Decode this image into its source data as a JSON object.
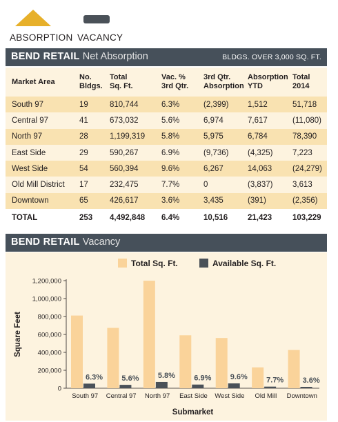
{
  "legend_top": {
    "absorption_label": "ABSORPTION",
    "vacancy_label": "VACANCY",
    "absorption_color": "#e7b02a",
    "vacancy_color": "#4a5158"
  },
  "absorption_section": {
    "title_bold": "BEND RETAIL",
    "title_sub": "Net Absorption",
    "note": "BLDGS. OVER 3,000 SQ. FT."
  },
  "table": {
    "headers": [
      [
        "Market Area"
      ],
      [
        "No.",
        "Bldgs."
      ],
      [
        "Total",
        "Sq. Ft."
      ],
      [
        "Vac. %",
        "3rd Qtr."
      ],
      [
        "3rd Qtr.",
        "Absorption"
      ],
      [
        "Absorption",
        "YTD"
      ],
      [
        "Total",
        "2014"
      ]
    ],
    "rows": [
      [
        "South 97",
        "19",
        "810,744",
        "6.3%",
        "(2,399)",
        "1,512",
        "51,718"
      ],
      [
        "Central 97",
        "41",
        "673,032",
        "5.6%",
        "6,974",
        "7,617",
        "(11,080)"
      ],
      [
        "North 97",
        "28",
        "1,199,319",
        "5.8%",
        "5,975",
        "6,784",
        "78,390"
      ],
      [
        "East Side",
        "29",
        "590,267",
        "6.9%",
        "(9,736)",
        "(4,325)",
        "7,223"
      ],
      [
        "West Side",
        "54",
        "560,394",
        "9.6%",
        "6,267",
        "14,063",
        "(24,279)"
      ],
      [
        "Old Mill District",
        "17",
        "232,475",
        "7.7%",
        "0",
        "(3,837)",
        "3,613"
      ],
      [
        "Downtown",
        "65",
        "426,617",
        "3.6%",
        "3,435",
        "(391)",
        "(2,356)"
      ]
    ],
    "total": [
      "TOTAL",
      "253",
      "4,492,848",
      "6.4%",
      "10,516",
      "21,423",
      "103,229"
    ]
  },
  "vacancy_section": {
    "title_bold": "BEND RETAIL",
    "title_sub": "Vacancy"
  },
  "chart_data": {
    "type": "bar",
    "xlabel": "Submarket",
    "ylabel": "Square Feet",
    "ylim": [
      0,
      1200000
    ],
    "yticks": [
      0,
      200000,
      400000,
      600000,
      800000,
      1000000,
      1200000
    ],
    "ytick_labels": [
      "0",
      "200,000",
      "400,000",
      "600,000",
      "800,000",
      "1,000,000",
      "1,200,000"
    ],
    "categories": [
      "South 97",
      "Central 97",
      "North 97",
      "East Side",
      "West Side",
      "Old Mill",
      "Downtown"
    ],
    "series": [
      {
        "name": "Total Sq. Ft.",
        "color": "#fad39a",
        "values": [
          810744,
          673032,
          1199319,
          590267,
          560394,
          232475,
          426617
        ]
      },
      {
        "name": "Available Sq. Ft.",
        "color": "#4a5158",
        "values": [
          51077,
          37690,
          69561,
          40728,
          53798,
          17901,
          15358
        ]
      }
    ],
    "data_labels": [
      "6.3%",
      "5.6%",
      "5.8%",
      "6.9%",
      "9.6%",
      "7.7%",
      "3.6%"
    ],
    "grid": false,
    "legend_position": "top"
  }
}
